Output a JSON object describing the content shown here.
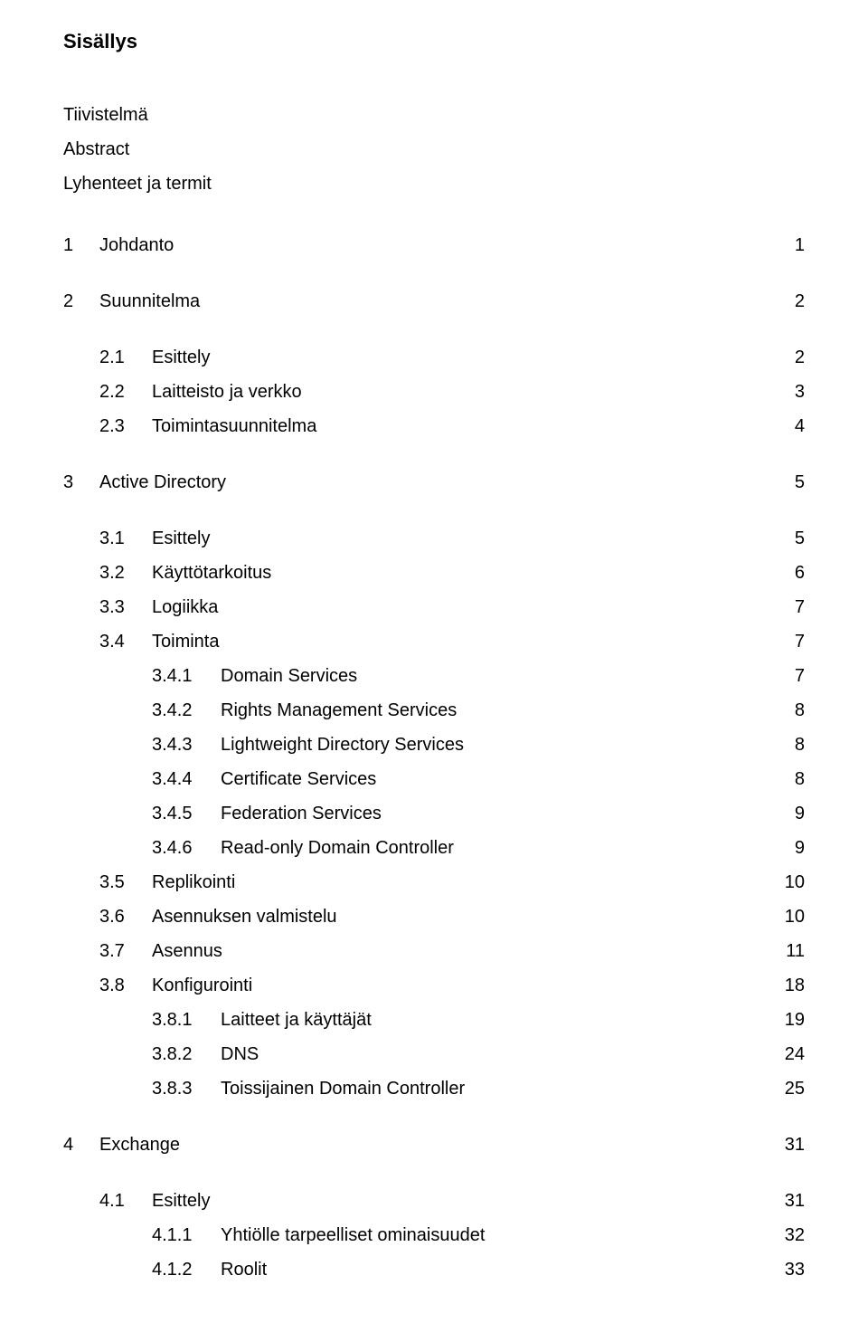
{
  "title": "Sisällys",
  "front_matter": [
    "Tiivistelmä",
    "Abstract",
    "Lyhenteet ja termit"
  ],
  "toc": [
    {
      "level": 1,
      "num": "1",
      "label": "Johdanto",
      "page": "1",
      "gap": false
    },
    {
      "level": 1,
      "num": "2",
      "label": "Suunnitelma",
      "page": "2",
      "gap": true
    },
    {
      "level": 2,
      "num": "2.1",
      "label": "Esittely",
      "page": "2",
      "gap": true
    },
    {
      "level": 2,
      "num": "2.2",
      "label": "Laitteisto ja verkko",
      "page": "3",
      "gap": false
    },
    {
      "level": 2,
      "num": "2.3",
      "label": "Toimintasuunnitelma",
      "page": "4",
      "gap": false
    },
    {
      "level": 1,
      "num": "3",
      "label": "Active Directory",
      "page": "5",
      "gap": true
    },
    {
      "level": 2,
      "num": "3.1",
      "label": "Esittely",
      "page": "5",
      "gap": true
    },
    {
      "level": 2,
      "num": "3.2",
      "label": "Käyttötarkoitus",
      "page": "6",
      "gap": false
    },
    {
      "level": 2,
      "num": "3.3",
      "label": "Logiikka",
      "page": "7",
      "gap": false
    },
    {
      "level": 2,
      "num": "3.4",
      "label": "Toiminta",
      "page": "7",
      "gap": false
    },
    {
      "level": 3,
      "num": "3.4.1",
      "label": "Domain Services",
      "page": "7",
      "gap": false
    },
    {
      "level": 3,
      "num": "3.4.2",
      "label": "Rights Management Services",
      "page": "8",
      "gap": false
    },
    {
      "level": 3,
      "num": "3.4.3",
      "label": "Lightweight Directory Services",
      "page": "8",
      "gap": false
    },
    {
      "level": 3,
      "num": "3.4.4",
      "label": "Certificate Services",
      "page": "8",
      "gap": false
    },
    {
      "level": 3,
      "num": "3.4.5",
      "label": "Federation Services",
      "page": "9",
      "gap": false
    },
    {
      "level": 3,
      "num": "3.4.6",
      "label": "Read-only Domain Controller",
      "page": "9",
      "gap": false
    },
    {
      "level": 2,
      "num": "3.5",
      "label": "Replikointi",
      "page": "10",
      "gap": false
    },
    {
      "level": 2,
      "num": "3.6",
      "label": "Asennuksen valmistelu",
      "page": "10",
      "gap": false
    },
    {
      "level": 2,
      "num": "3.7",
      "label": "Asennus",
      "page": "11",
      "gap": false
    },
    {
      "level": 2,
      "num": "3.8",
      "label": "Konfigurointi",
      "page": "18",
      "gap": false
    },
    {
      "level": 3,
      "num": "3.8.1",
      "label": "Laitteet ja käyttäjät",
      "page": "19",
      "gap": false
    },
    {
      "level": 3,
      "num": "3.8.2",
      "label": "DNS",
      "page": "24",
      "gap": false
    },
    {
      "level": 3,
      "num": "3.8.3",
      "label": "Toissijainen Domain Controller",
      "page": "25",
      "gap": false
    },
    {
      "level": 1,
      "num": "4",
      "label": "Exchange",
      "page": "31",
      "gap": true
    },
    {
      "level": 2,
      "num": "4.1",
      "label": "Esittely",
      "page": "31",
      "gap": true
    },
    {
      "level": 3,
      "num": "4.1.1",
      "label": "Yhtiölle tarpeelliset ominaisuudet",
      "page": "32",
      "gap": false
    },
    {
      "level": 3,
      "num": "4.1.2",
      "label": "Roolit",
      "page": "33",
      "gap": false
    }
  ]
}
